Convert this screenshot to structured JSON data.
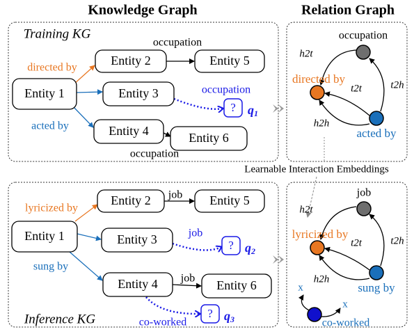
{
  "headers": {
    "left": "Knowledge Graph",
    "right": "Relation Graph"
  },
  "training_kg": {
    "title": "Training KG",
    "entities": [
      "Entity 1",
      "Entity 2",
      "Entity 3",
      "Entity 4",
      "Entity 5",
      "Entity 6"
    ],
    "query": "?",
    "query_label": {
      "symbol": "q",
      "index": "1"
    },
    "edge_labels": [
      "directed by",
      "acted by",
      "occupation",
      "occupation",
      "occupation"
    ]
  },
  "training_relation_graph": {
    "relations": [
      "occupation",
      "directed by",
      "acted by"
    ],
    "edge_labels": [
      "h2t",
      "t2t",
      "t2h",
      "h2h"
    ]
  },
  "shared": {
    "label": "Learnable Interaction Embeddings"
  },
  "inference_kg": {
    "title": "Inference KG",
    "entities": [
      "Entity 1",
      "Entity 2",
      "Entity 3",
      "Entity 4",
      "Entity 5",
      "Entity 6"
    ],
    "queries": [
      {
        "mark": "?",
        "symbol": "q",
        "index": "2"
      },
      {
        "mark": "?",
        "symbol": "q",
        "index": "3"
      }
    ],
    "edge_labels": [
      "lyricized by",
      "sung by",
      "job",
      "job",
      "job",
      "co-worked"
    ]
  },
  "inference_relation_graph": {
    "relations": [
      "job",
      "lyricized by",
      "sung by",
      "co-worked"
    ],
    "edge_labels": [
      "h2t",
      "t2t",
      "t2h",
      "h2h",
      "x",
      "x"
    ]
  }
}
